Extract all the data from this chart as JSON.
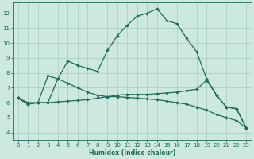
{
  "xlabel": "Humidex (Indice chaleur)",
  "background_color": "#cce8df",
  "grid_color": "#a8ccbf",
  "line_color": "#1e6b58",
  "xlim": [
    -0.5,
    23.5
  ],
  "ylim": [
    3.5,
    12.7
  ],
  "xticks": [
    0,
    1,
    2,
    3,
    4,
    5,
    6,
    7,
    8,
    9,
    10,
    11,
    12,
    13,
    14,
    15,
    16,
    17,
    18,
    19,
    20,
    21,
    22,
    23
  ],
  "yticks": [
    4,
    5,
    6,
    7,
    8,
    9,
    10,
    11,
    12
  ],
  "line1_y": [
    6.3,
    5.9,
    6.0,
    7.8,
    7.6,
    8.8,
    8.5,
    8.3,
    8.1,
    9.5,
    10.5,
    11.2,
    11.8,
    12.0,
    12.3,
    11.5,
    11.3,
    10.3,
    9.4,
    7.6,
    6.5,
    5.7,
    5.6,
    4.3
  ],
  "line2_y": [
    6.3,
    6.0,
    6.0,
    6.0,
    6.05,
    6.1,
    6.15,
    6.2,
    6.3,
    6.4,
    6.5,
    6.55,
    6.55,
    6.55,
    6.6,
    6.65,
    6.7,
    6.8,
    6.9,
    7.5,
    6.5,
    5.7,
    5.6,
    4.3
  ],
  "line3_y": [
    6.3,
    5.9,
    6.0,
    6.0,
    7.6,
    7.3,
    7.0,
    6.7,
    6.5,
    6.4,
    6.4,
    6.35,
    6.3,
    6.25,
    6.2,
    6.1,
    6.0,
    5.9,
    5.7,
    5.5,
    5.2,
    5.0,
    4.8,
    4.3
  ]
}
